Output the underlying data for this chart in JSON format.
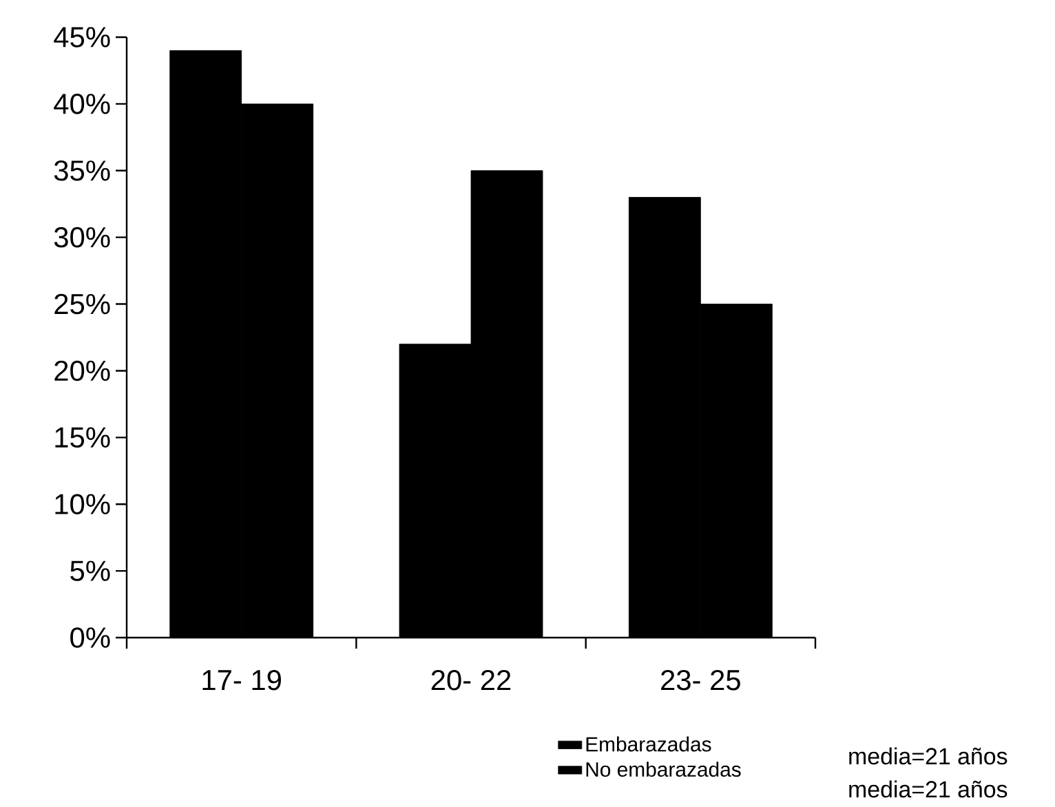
{
  "chart_data": {
    "type": "bar",
    "categories": [
      "17- 19",
      "20- 22",
      "23- 25"
    ],
    "series": [
      {
        "name": "Embarazadas",
        "color": "#000000",
        "values": [
          44,
          22,
          33
        ]
      },
      {
        "name": "No embarazadas",
        "color": "#000000",
        "values": [
          40,
          35,
          25
        ]
      }
    ],
    "ylim": [
      0,
      45
    ],
    "yticks": [
      {
        "value": 0,
        "label": "0%"
      },
      {
        "value": 5,
        "label": "5%"
      },
      {
        "value": 10,
        "label": "10%"
      },
      {
        "value": 15,
        "label": "15%"
      },
      {
        "value": 20,
        "label": "20%"
      },
      {
        "value": 25,
        "label": "25%"
      },
      {
        "value": 30,
        "label": "30%"
      },
      {
        "value": 35,
        "label": "35%"
      },
      {
        "value": 40,
        "label": "40%"
      },
      {
        "value": 45,
        "label": "45%"
      }
    ],
    "grid": false,
    "legend": "bottom",
    "annotations": [
      "media=21 años",
      "media=21 años"
    ]
  }
}
